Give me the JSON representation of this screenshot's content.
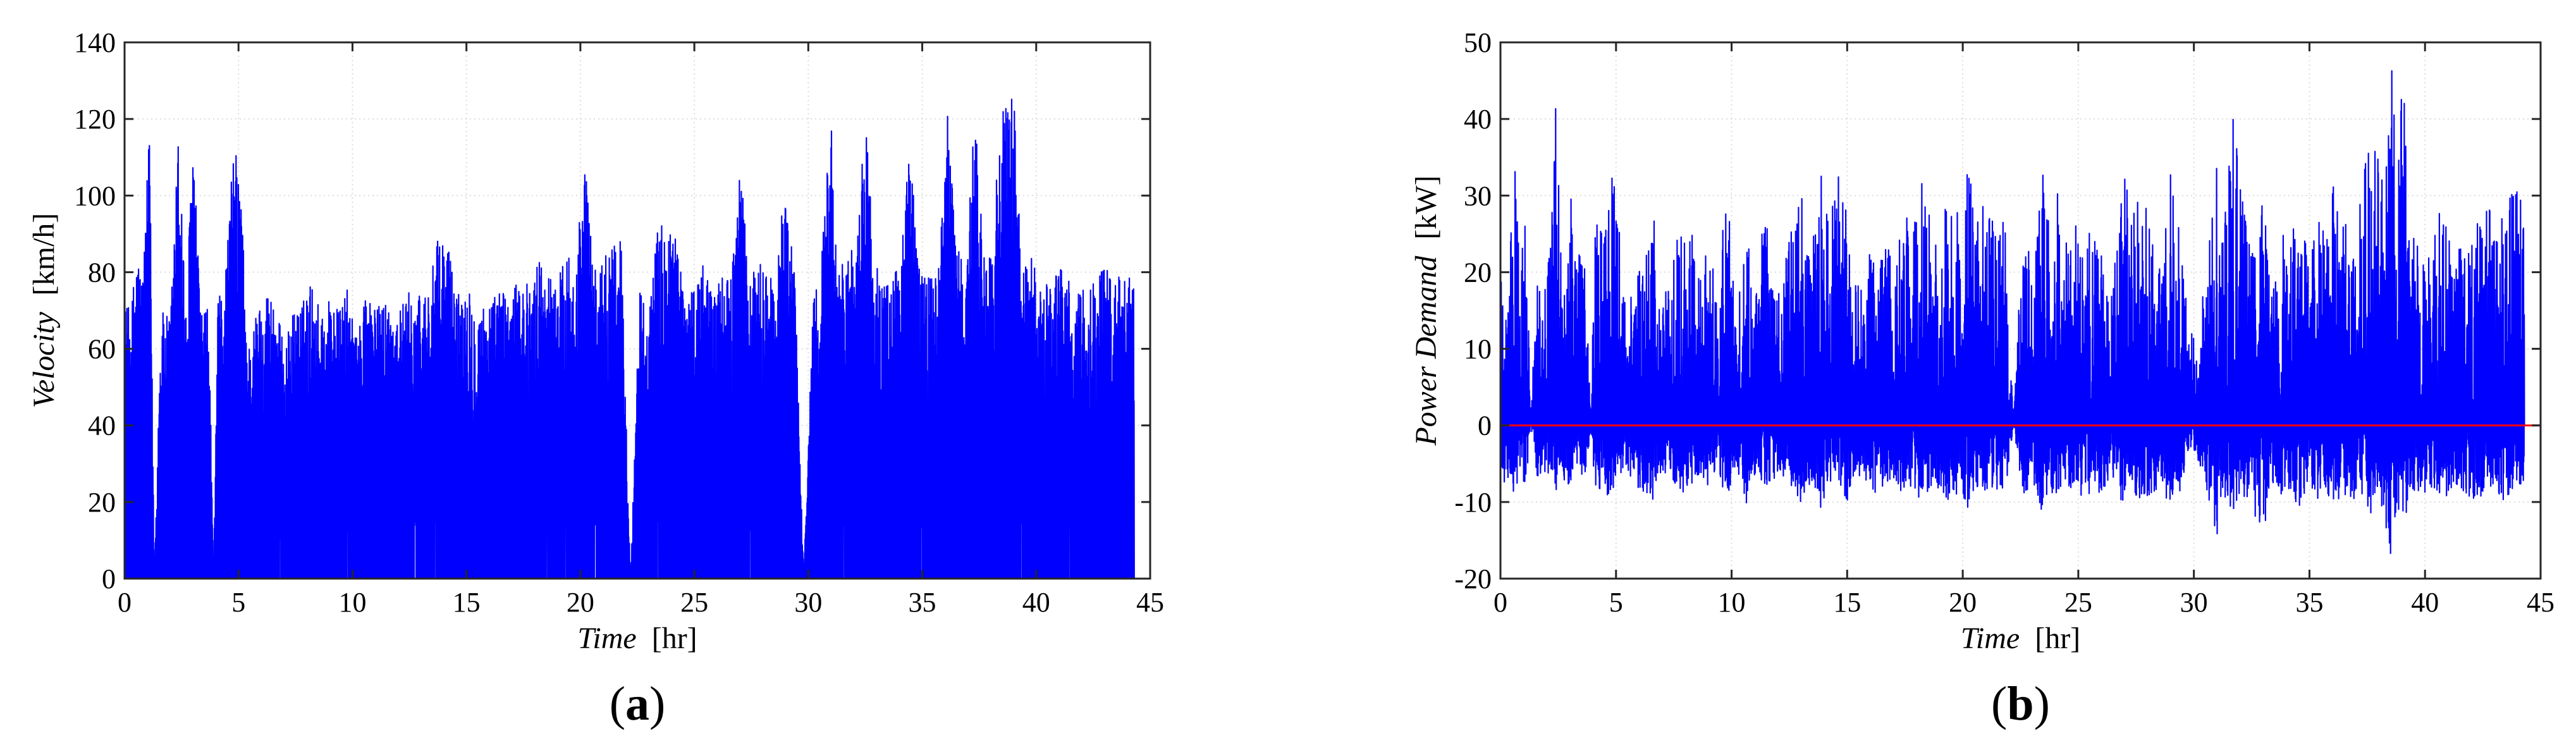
{
  "colors": {
    "series": "#0000ff",
    "zero_line": "#ff0000",
    "axis": "#262626",
    "grid": "#dcdcdc"
  },
  "chart_data": [
    {
      "type": "line",
      "panel_label": "a",
      "xlabel_italic": "Time",
      "xlabel_unit": "[hr]",
      "ylabel_italic": "Velocity",
      "ylabel_unit": "[km/h]",
      "xlim": [
        0,
        45
      ],
      "ylim": [
        0,
        140
      ],
      "xticks": [
        0,
        5,
        10,
        15,
        20,
        25,
        30,
        35,
        40,
        45
      ],
      "yticks": [
        0,
        20,
        40,
        60,
        80,
        100,
        120,
        140
      ],
      "grid": true,
      "series_color": "#0000ff",
      "data_extent_x": [
        0,
        44.3
      ],
      "envelope": {
        "x": [
          0,
          0.3,
          0.5,
          0.8,
          1.1,
          1.3,
          1.6,
          2.0,
          2.4,
          2.7,
          3.0,
          3.3,
          3.7,
          3.9,
          4.1,
          4.4,
          4.8,
          5.1,
          5.4,
          5.8,
          6.2,
          6.6,
          7.0,
          7.4,
          7.8,
          8.2,
          8.6,
          9.0,
          9.4,
          9.8,
          10.2,
          10.6,
          11.0,
          11.4,
          11.8,
          12.2,
          12.6,
          13.0,
          13.4,
          13.8,
          14.2,
          14.6,
          15.0,
          15.4,
          15.8,
          16.2,
          16.6,
          17.0,
          17.4,
          17.8,
          18.2,
          18.6,
          19.0,
          19.4,
          19.8,
          20.2,
          20.6,
          21.0,
          21.4,
          21.8,
          22.2,
          22.6,
          23.0,
          23.4,
          23.8,
          24.2,
          24.6,
          25.0,
          25.4,
          25.8,
          26.2,
          26.6,
          27.0,
          27.4,
          27.8,
          28.2,
          28.6,
          29.0,
          29.4,
          29.8,
          30.2,
          30.6,
          31.0,
          31.3,
          31.7,
          32.1,
          32.5,
          32.9,
          33.3,
          33.7,
          34.1,
          34.5,
          34.9,
          35.3,
          35.7,
          36.1,
          36.5,
          36.9,
          37.3,
          37.7,
          38.1,
          38.5,
          38.8,
          39.0,
          39.4,
          39.8,
          40.2,
          40.6,
          41.0,
          41.4,
          41.8,
          42.2,
          42.6,
          43.0,
          43.4,
          43.8,
          44.3
        ],
        "max": [
          72,
          70,
          87,
          80,
          118,
          0,
          70,
          68,
          122,
          68,
          121,
          72,
          70,
          0,
          72,
          80,
          114,
          104,
          60,
          70,
          76,
          74,
          60,
          70,
          72,
          78,
          70,
          74,
          70,
          76,
          62,
          78,
          70,
          74,
          70,
          72,
          76,
          74,
          78,
          90,
          88,
          74,
          80,
          70,
          72,
          74,
          76,
          74,
          80,
          76,
          84,
          80,
          78,
          86,
          84,
          110,
          80,
          84,
          90,
          88,
          0,
          76,
          70,
          92,
          94,
          90,
          74,
          78,
          82,
          76,
          80,
          78,
          110,
          78,
          84,
          80,
          76,
          110,
          80,
          0,
          74,
          86,
          123,
          80,
          88,
          84,
          122,
          84,
          76,
          80,
          86,
          122,
          78,
          82,
          80,
          124,
          88,
          80,
          122,
          84,
          86,
          132,
          120,
          130,
          80,
          84,
          76,
          80,
          82,
          78,
          74,
          76,
          80,
          82,
          78,
          80,
          78
        ]
      }
    },
    {
      "type": "line",
      "panel_label": "b",
      "xlabel_italic": "Time",
      "xlabel_unit": "[hr]",
      "ylabel_italic": "Power Demand",
      "ylabel_unit": "[kW]",
      "xlim": [
        0,
        45
      ],
      "ylim": [
        -20,
        50
      ],
      "xticks": [
        0,
        5,
        10,
        15,
        20,
        25,
        30,
        35,
        40,
        45
      ],
      "yticks": [
        -20,
        -10,
        0,
        10,
        20,
        30,
        40,
        50
      ],
      "grid": true,
      "series_color": "#0000ff",
      "reference_line_y": 0,
      "reference_line_color": "#ff0000",
      "data_extent_x": [
        0,
        44.3
      ],
      "envelope": {
        "x": [
          0,
          0.3,
          0.6,
          0.8,
          1.1,
          1.3,
          1.6,
          2.0,
          2.4,
          2.7,
          3.0,
          3.3,
          3.7,
          3.9,
          4.1,
          4.4,
          4.8,
          5.1,
          5.4,
          5.8,
          6.2,
          6.6,
          7.0,
          7.4,
          7.8,
          8.2,
          8.6,
          9.0,
          9.4,
          9.8,
          10.2,
          10.6,
          11.0,
          11.4,
          11.8,
          12.2,
          12.6,
          13.0,
          13.4,
          13.8,
          14.2,
          14.6,
          15.0,
          15.4,
          15.8,
          16.2,
          16.6,
          17.0,
          17.4,
          17.8,
          18.2,
          18.6,
          19.0,
          19.4,
          19.8,
          20.2,
          20.6,
          21.0,
          21.4,
          21.8,
          22.2,
          22.6,
          23.0,
          23.4,
          23.8,
          24.2,
          24.6,
          25.0,
          25.4,
          25.8,
          26.2,
          26.6,
          27.0,
          27.4,
          27.8,
          28.2,
          28.6,
          29.0,
          29.4,
          29.8,
          30.2,
          30.6,
          31.0,
          31.3,
          31.7,
          32.1,
          32.5,
          32.9,
          33.3,
          33.7,
          34.1,
          34.5,
          34.9,
          35.3,
          35.7,
          36.1,
          36.5,
          36.9,
          37.3,
          37.7,
          38.1,
          38.5,
          38.8,
          39.0,
          39.4,
          39.8,
          40.2,
          40.6,
          41.0,
          41.4,
          41.8,
          42.2,
          42.6,
          43.0,
          43.4,
          43.8,
          44.3
        ],
        "max": [
          28,
          18,
          40,
          22,
          33,
          0,
          24,
          20,
          42,
          20,
          37,
          22,
          24,
          0,
          34,
          28,
          34,
          28,
          16,
          18,
          22,
          28,
          18,
          20,
          28,
          27,
          20,
          24,
          18,
          33,
          12,
          28,
          20,
          28,
          22,
          18,
          28,
          33,
          22,
          34,
          28,
          33,
          28,
          20,
          22,
          28,
          24,
          22,
          28,
          26,
          33,
          28,
          22,
          33,
          28,
          34,
          28,
          33,
          26,
          28,
          0,
          28,
          20,
          34,
          28,
          33,
          22,
          28,
          28,
          27,
          24,
          22,
          33,
          28,
          34,
          26,
          22,
          33,
          28,
          12,
          14,
          24,
          34,
          26,
          43,
          30,
          22,
          34,
          20,
          24,
          26,
          33,
          22,
          28,
          26,
          34,
          28,
          24,
          33,
          38,
          34,
          47,
          44,
          48,
          28,
          24,
          22,
          28,
          26,
          24,
          22,
          28,
          34,
          24,
          28,
          33,
          28
        ],
        "min": [
          -8,
          -7,
          -10,
          -6,
          -9,
          0,
          -7,
          -6,
          -9,
          -7,
          -8,
          -6,
          -7,
          0,
          -9,
          -8,
          -10,
          -7,
          -5,
          -8,
          -9,
          -10,
          -6,
          -7,
          -9,
          -8,
          -7,
          -9,
          -6,
          -10,
          -5,
          -11,
          -7,
          -8,
          -7,
          -8,
          -9,
          -10,
          -8,
          -11,
          -9,
          -7,
          -10,
          -6,
          -8,
          -9,
          -8,
          -7,
          -9,
          -8,
          -10,
          -9,
          -8,
          -10,
          -9,
          -11,
          -8,
          -9,
          -8,
          -10,
          0,
          -9,
          -8,
          -11,
          -9,
          -10,
          -8,
          -9,
          -10,
          -9,
          -8,
          -7,
          -12,
          -9,
          -10,
          -9,
          -8,
          -11,
          -9,
          -3,
          -5,
          -9,
          -15,
          -9,
          -12,
          -10,
          -9,
          -17,
          -8,
          -9,
          -10,
          -11,
          -8,
          -10,
          -9,
          -10,
          -9,
          -10,
          -9,
          -12,
          -10,
          -17,
          -12,
          -14,
          -9,
          -10,
          -8,
          -9,
          -10,
          -8,
          -9,
          -10,
          -9,
          -8,
          -10,
          -9,
          -8
        ]
      }
    }
  ]
}
